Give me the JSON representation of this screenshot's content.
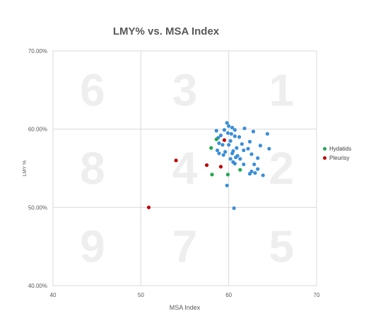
{
  "chart_data": {
    "type": "scatter",
    "title": "LMY% vs. MSA Index",
    "xlabel": "MSA Index",
    "ylabel": "LMY %",
    "xlim": [
      40,
      70
    ],
    "ylim": [
      40,
      70
    ],
    "x_ticks": [
      40,
      50,
      60,
      70
    ],
    "y_ticks": [
      "40.00%",
      "50.00%",
      "60.00%",
      "70.00%"
    ],
    "grid": true,
    "legend_position": "right",
    "quadrant_labels": [
      {
        "label": "6",
        "x": 44.5,
        "y": 65
      },
      {
        "label": "3",
        "x": 55,
        "y": 65
      },
      {
        "label": "1",
        "x": 66,
        "y": 65
      },
      {
        "label": "8",
        "x": 44.5,
        "y": 55
      },
      {
        "label": "4",
        "x": 55,
        "y": 55
      },
      {
        "label": "2",
        "x": 66,
        "y": 55
      },
      {
        "label": "9",
        "x": 44.5,
        "y": 45
      },
      {
        "label": "7",
        "x": 55,
        "y": 45
      },
      {
        "label": "5",
        "x": 66,
        "y": 45
      }
    ],
    "series": [
      {
        "color": "#3a8fd8",
        "points": [
          [
            59.8,
            60.8
          ],
          [
            60.0,
            60.4
          ],
          [
            60.4,
            60.2
          ],
          [
            61.8,
            60.1
          ],
          [
            60.7,
            59.9
          ],
          [
            59.5,
            59.9
          ],
          [
            58.6,
            59.8
          ],
          [
            62.8,
            59.7
          ],
          [
            59.9,
            59.5
          ],
          [
            60.3,
            59.4
          ],
          [
            64.4,
            59.4
          ],
          [
            59.1,
            59.2
          ],
          [
            60.7,
            59.1
          ],
          [
            61.2,
            59.0
          ],
          [
            58.8,
            58.9
          ],
          [
            60.2,
            58.5
          ],
          [
            62.4,
            58.4
          ],
          [
            58.9,
            58.2
          ],
          [
            60.0,
            58.0
          ],
          [
            61.5,
            58.1
          ],
          [
            59.3,
            58.0
          ],
          [
            63.6,
            57.9
          ],
          [
            60.9,
            57.6
          ],
          [
            62.2,
            57.5
          ],
          [
            64.6,
            57.5
          ],
          [
            58.7,
            57.3
          ],
          [
            60.5,
            57.2
          ],
          [
            61.7,
            57.3
          ],
          [
            59.6,
            57.1
          ],
          [
            60.4,
            56.9
          ],
          [
            61.0,
            56.6
          ],
          [
            62.6,
            56.8
          ],
          [
            59.4,
            56.7
          ],
          [
            58.9,
            56.9
          ],
          [
            60.8,
            56.4
          ],
          [
            63.3,
            56.3
          ],
          [
            60.2,
            56.2
          ],
          [
            61.3,
            56.2
          ],
          [
            60.5,
            55.8
          ],
          [
            60.7,
            55.6
          ],
          [
            61.7,
            55.5
          ],
          [
            62.9,
            55.5
          ],
          [
            63.3,
            54.9
          ],
          [
            62.6,
            54.6
          ],
          [
            63.0,
            54.4
          ],
          [
            62.4,
            54.3
          ],
          [
            63.9,
            54.1
          ],
          [
            59.8,
            52.8
          ],
          [
            60.6,
            49.9
          ]
        ]
      },
      {
        "name": "Hydatids",
        "color": "#1fa84f",
        "points": [
          [
            58.6,
            58.7
          ],
          [
            58.0,
            57.6
          ],
          [
            61.3,
            54.8
          ],
          [
            59.9,
            54.2
          ],
          [
            58.1,
            54.2
          ]
        ]
      },
      {
        "name": "Pleurisy",
        "color": "#c00000",
        "points": [
          [
            59.5,
            58.6
          ],
          [
            54.0,
            56.0
          ],
          [
            57.5,
            55.4
          ],
          [
            59.1,
            55.2
          ],
          [
            50.9,
            50.0
          ]
        ]
      }
    ]
  }
}
